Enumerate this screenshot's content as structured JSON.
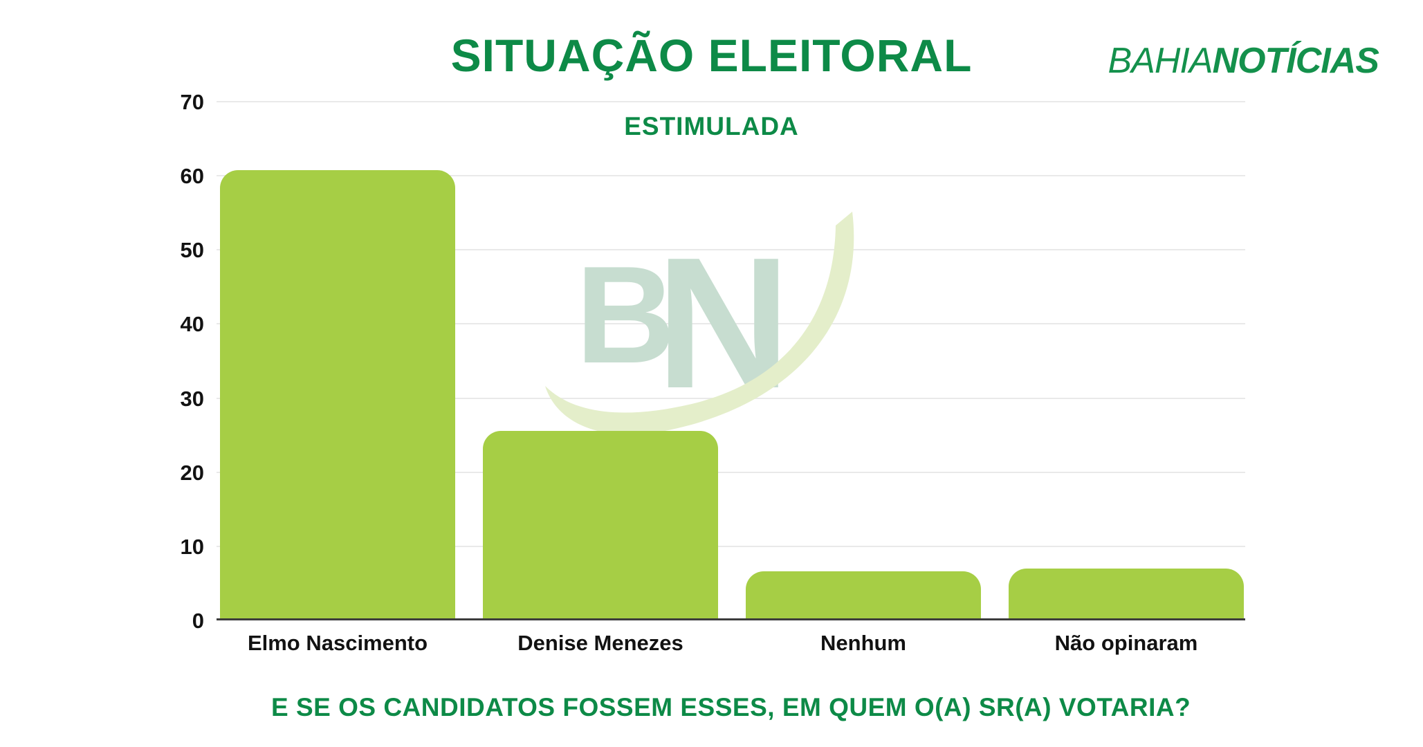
{
  "header": {
    "title": "SITUAÇÃO ELEITORAL",
    "subtitle": "ESTIMULADA"
  },
  "brand": {
    "light": "BAHIA",
    "bold": "NOTÍCIAS"
  },
  "watermark": {
    "letter_b": "B",
    "letter_n": "N"
  },
  "footer": {
    "question": "E SE OS CANDIDATOS FOSSEM ESSES, EM QUEM O(A) SR(A) VOTARIA?"
  },
  "colors": {
    "title_green": "#0d8a47",
    "brand_green": "#14914c",
    "bar_green": "#a6ce45",
    "gridline": "#e9e9e9",
    "axis_line": "#3c3c3c",
    "label_ink": "#121212",
    "watermark_mark": "#c7ddd0",
    "watermark_swoosh": "#e4eeca"
  },
  "chart_data": {
    "type": "bar",
    "title": "SITUAÇÃO ELEITORAL",
    "subtitle": "ESTIMULADA",
    "categories": [
      "Elmo Nascimento",
      "Denise Menezes",
      "Nenhum",
      "Não opinaram"
    ],
    "values": [
      60.8,
      25.6,
      6.6,
      7.0
    ],
    "xlabel": "",
    "ylabel": "",
    "ylim": [
      0,
      70
    ],
    "yticks": [
      70,
      60,
      50,
      40,
      30,
      20,
      10,
      0
    ],
    "grid": "horizontal",
    "legend": "none",
    "bar_color": "#a6ce45",
    "footnote_question": "E SE OS CANDIDATOS FOSSEM ESSES, EM QUEM O(A) SR(A) VOTARIA?"
  }
}
